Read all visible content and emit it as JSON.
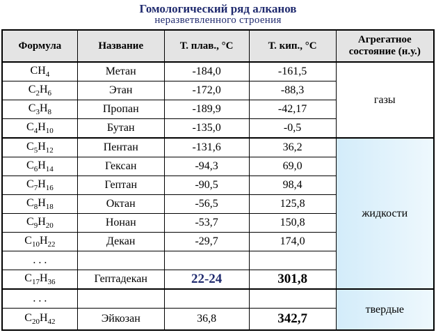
{
  "header": {
    "title": "Гомологический ряд алканов",
    "subtitle": "неразветвленного строения"
  },
  "table": {
    "columns": [
      "Формула",
      "Название",
      "Т. плав., °С",
      "Т. кип., °С",
      "Агрегатное состояние (н.у.)"
    ],
    "rows": [
      [
        [
          [
            "C"
          ],
          [
            "H",
            "4"
          ]
        ],
        "Метан",
        "-184,0",
        "-161,5"
      ],
      [
        [
          [
            "C",
            "2"
          ],
          [
            "H",
            "6"
          ]
        ],
        "Этан",
        "-172,0",
        "-88,3"
      ],
      [
        [
          [
            "C",
            "3"
          ],
          [
            "H",
            "8"
          ]
        ],
        "Пропан",
        "-189,9",
        "-42,17"
      ],
      [
        [
          [
            "C",
            "4"
          ],
          [
            "H",
            "10"
          ]
        ],
        "Бутан",
        "-135,0",
        "-0,5"
      ],
      [
        [
          [
            "C",
            "5"
          ],
          [
            "H",
            "12"
          ]
        ],
        "Пентан",
        "-131,6",
        "36,2"
      ],
      [
        [
          [
            "C",
            "6"
          ],
          [
            "H",
            "14"
          ]
        ],
        "Гексан",
        "-94,3",
        "69,0"
      ],
      [
        [
          [
            "C",
            "7"
          ],
          [
            "H",
            "16"
          ]
        ],
        "Гептан",
        "-90,5",
        "98,4"
      ],
      [
        [
          [
            "C",
            "8"
          ],
          [
            "H",
            "18"
          ]
        ],
        "Октан",
        "-56,5",
        "125,8"
      ],
      [
        [
          [
            "C",
            "9"
          ],
          [
            "H",
            "20"
          ]
        ],
        "Нонан",
        "-53,7",
        "150,8"
      ],
      [
        [
          [
            "C",
            "10"
          ],
          [
            "H",
            "22"
          ]
        ],
        "Декан",
        "-29,7",
        "174,0"
      ],
      [
        ". . .",
        null,
        null,
        null
      ],
      [
        [
          [
            "C",
            "17"
          ],
          [
            "H",
            "36"
          ]
        ],
        "Гептадекан",
        "22-24",
        "301,8"
      ],
      [
        ". . .",
        null,
        null,
        null
      ],
      [
        [
          [
            "C",
            "20"
          ],
          [
            "H",
            "42"
          ]
        ],
        "Эйкозан",
        "36,8",
        "342,7"
      ]
    ],
    "states": [
      "газы",
      "жидкости",
      "твердые"
    ]
  }
}
